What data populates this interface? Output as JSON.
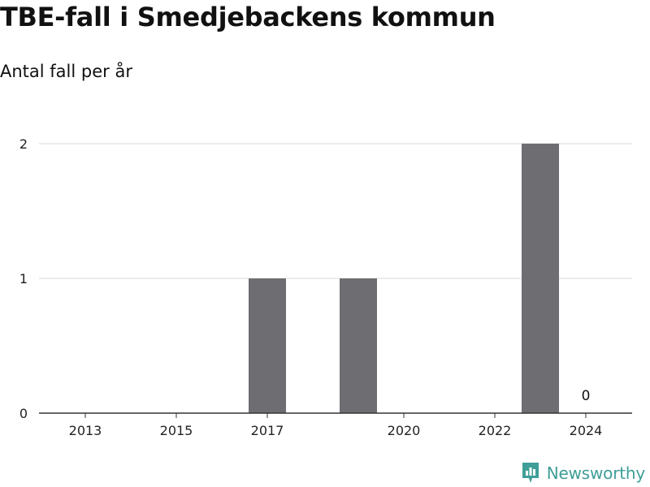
{
  "chart_data": {
    "type": "bar",
    "title": "TBE-fall i Smedjebackens kommun",
    "subtitle": "Antal fall per år",
    "x": [
      2013,
      2014,
      2015,
      2016,
      2017,
      2018,
      2019,
      2020,
      2021,
      2022,
      2023,
      2024
    ],
    "values": [
      0,
      0,
      0,
      0,
      1,
      0,
      1,
      0,
      0,
      0,
      2,
      0
    ],
    "x_tick_labels": [
      "2013",
      "2015",
      "2017",
      "2020",
      "2022",
      "2024"
    ],
    "x_tick_values": [
      2013,
      2015,
      2017,
      2020,
      2022,
      2024
    ],
    "y_ticks": [
      0,
      1,
      2
    ],
    "ylim": [
      0,
      2
    ],
    "grid": true,
    "bar_color": "#6e6d72",
    "data_labels": [
      {
        "x": 2024,
        "text": "0"
      }
    ]
  },
  "brand": {
    "name": "Newsworthy",
    "color": "#3f9e98"
  }
}
